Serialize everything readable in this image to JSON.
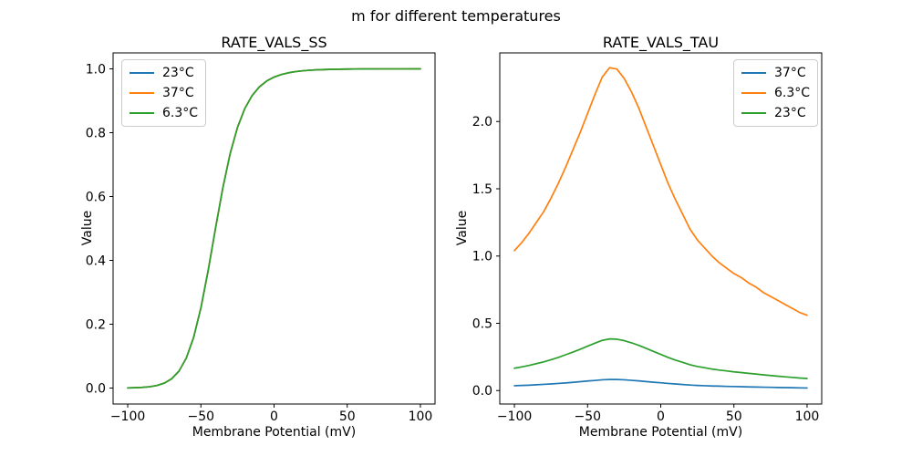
{
  "suptitle": "m for different temperatures",
  "background": "#ffffff",
  "axis_color": "#000000",
  "chart_data": [
    {
      "type": "line",
      "title": "RATE_VALS_SS",
      "xlabel": "Membrane Potential (mV)",
      "ylabel": "Value",
      "grid": false,
      "legend_position": "upper-left",
      "xlim": [
        -110,
        110
      ],
      "ylim": [
        -0.05,
        1.05
      ],
      "xticks": [
        -100,
        -50,
        0,
        50,
        100
      ],
      "xtick_labels": [
        "−100",
        "−50",
        "0",
        "50",
        "100"
      ],
      "yticks": [
        0.0,
        0.2,
        0.4,
        0.6,
        0.8,
        1.0
      ],
      "ytick_labels": [
        "0.0",
        "0.2",
        "0.4",
        "0.6",
        "0.8",
        "1.0"
      ],
      "x": [
        -100,
        -95,
        -90,
        -85,
        -80,
        -75,
        -70,
        -65,
        -60,
        -55,
        -50,
        -45,
        -40,
        -35,
        -30,
        -25,
        -20,
        -15,
        -10,
        -5,
        0,
        5,
        10,
        15,
        20,
        25,
        30,
        35,
        40,
        45,
        50,
        55,
        60,
        65,
        70,
        75,
        80,
        85,
        90,
        95,
        100
      ],
      "series": [
        {
          "name": "23°C",
          "color": "#1f77b4",
          "values": [
            0.0005,
            0.0011,
            0.0021,
            0.0041,
            0.008,
            0.0154,
            0.0289,
            0.0529,
            0.0936,
            0.158,
            0.2508,
            0.3692,
            0.5006,
            0.6271,
            0.7343,
            0.8166,
            0.8757,
            0.9163,
            0.9437,
            0.962,
            0.9742,
            0.9823,
            0.9878,
            0.9916,
            0.9941,
            0.9959,
            0.9971,
            0.9979,
            0.9985,
            0.999,
            0.9993,
            0.9995,
            0.9996,
            0.9997,
            0.9998,
            0.9999,
            0.9999,
            0.9999,
            0.9999,
            1.0,
            1.0
          ]
        },
        {
          "name": "37°C",
          "color": "#ff7f0e",
          "values": [
            0.0005,
            0.0011,
            0.0021,
            0.0041,
            0.008,
            0.0154,
            0.0289,
            0.0529,
            0.0936,
            0.158,
            0.2508,
            0.3692,
            0.5006,
            0.6271,
            0.7343,
            0.8166,
            0.8757,
            0.9163,
            0.9437,
            0.962,
            0.9742,
            0.9823,
            0.9878,
            0.9916,
            0.9941,
            0.9959,
            0.9971,
            0.9979,
            0.9985,
            0.999,
            0.9993,
            0.9995,
            0.9996,
            0.9997,
            0.9998,
            0.9999,
            0.9999,
            0.9999,
            0.9999,
            1.0,
            1.0
          ]
        },
        {
          "name": "6.3°C",
          "color": "#2ca02c",
          "values": [
            0.0005,
            0.0011,
            0.0021,
            0.0041,
            0.008,
            0.0154,
            0.0289,
            0.0529,
            0.0936,
            0.158,
            0.2508,
            0.3692,
            0.5006,
            0.6271,
            0.7343,
            0.8166,
            0.8757,
            0.9163,
            0.9437,
            0.962,
            0.9742,
            0.9823,
            0.9878,
            0.9916,
            0.9941,
            0.9959,
            0.9971,
            0.9979,
            0.9985,
            0.999,
            0.9993,
            0.9995,
            0.9996,
            0.9997,
            0.9998,
            0.9999,
            0.9999,
            0.9999,
            0.9999,
            1.0,
            1.0
          ]
        }
      ]
    },
    {
      "type": "line",
      "title": "RATE_VALS_TAU",
      "xlabel": "Membrane Potential (mV)",
      "ylabel": "Value",
      "grid": false,
      "legend_position": "upper-right",
      "xlim": [
        -110,
        110
      ],
      "ylim": [
        -0.1,
        2.51
      ],
      "xticks": [
        -100,
        -50,
        0,
        50,
        100
      ],
      "xtick_labels": [
        "−100",
        "−50",
        "0",
        "50",
        "100"
      ],
      "yticks": [
        0.0,
        0.5,
        1.0,
        1.5,
        2.0
      ],
      "ytick_labels": [
        "0.0",
        "0.5",
        "1.0",
        "1.5",
        "2.0"
      ],
      "x": [
        -100,
        -95,
        -90,
        -85,
        -80,
        -75,
        -70,
        -65,
        -60,
        -55,
        -50,
        -45,
        -40,
        -35,
        -30,
        -25,
        -20,
        -15,
        -10,
        -5,
        0,
        5,
        10,
        15,
        20,
        25,
        30,
        35,
        40,
        45,
        50,
        55,
        60,
        65,
        70,
        75,
        80,
        85,
        90,
        95,
        100
      ],
      "series": [
        {
          "name": "37°C",
          "color": "#1f77b4",
          "values": [
            0.036,
            0.038,
            0.04,
            0.043,
            0.046,
            0.049,
            0.053,
            0.057,
            0.061,
            0.066,
            0.071,
            0.075,
            0.08,
            0.082,
            0.082,
            0.08,
            0.076,
            0.072,
            0.067,
            0.062,
            0.058,
            0.053,
            0.049,
            0.045,
            0.041,
            0.038,
            0.036,
            0.034,
            0.033,
            0.031,
            0.03,
            0.029,
            0.027,
            0.026,
            0.025,
            0.024,
            0.023,
            0.022,
            0.021,
            0.02,
            0.019
          ]
        },
        {
          "name": "6.3°C",
          "color": "#ff7f0e",
          "values": [
            1.04,
            1.1,
            1.17,
            1.25,
            1.33,
            1.43,
            1.54,
            1.66,
            1.79,
            1.92,
            2.06,
            2.2,
            2.33,
            2.4,
            2.39,
            2.32,
            2.22,
            2.1,
            1.96,
            1.82,
            1.68,
            1.54,
            1.42,
            1.31,
            1.2,
            1.12,
            1.06,
            1.0,
            0.95,
            0.91,
            0.87,
            0.84,
            0.8,
            0.77,
            0.73,
            0.7,
            0.67,
            0.64,
            0.61,
            0.58,
            0.56
          ]
        },
        {
          "name": "23°C",
          "color": "#2ca02c",
          "values": [
            0.166,
            0.176,
            0.187,
            0.2,
            0.213,
            0.229,
            0.246,
            0.266,
            0.286,
            0.307,
            0.33,
            0.352,
            0.373,
            0.384,
            0.382,
            0.371,
            0.355,
            0.336,
            0.314,
            0.291,
            0.269,
            0.246,
            0.227,
            0.21,
            0.192,
            0.179,
            0.17,
            0.16,
            0.152,
            0.146,
            0.139,
            0.134,
            0.128,
            0.123,
            0.117,
            0.112,
            0.107,
            0.102,
            0.098,
            0.093,
            0.09
          ]
        }
      ]
    }
  ]
}
